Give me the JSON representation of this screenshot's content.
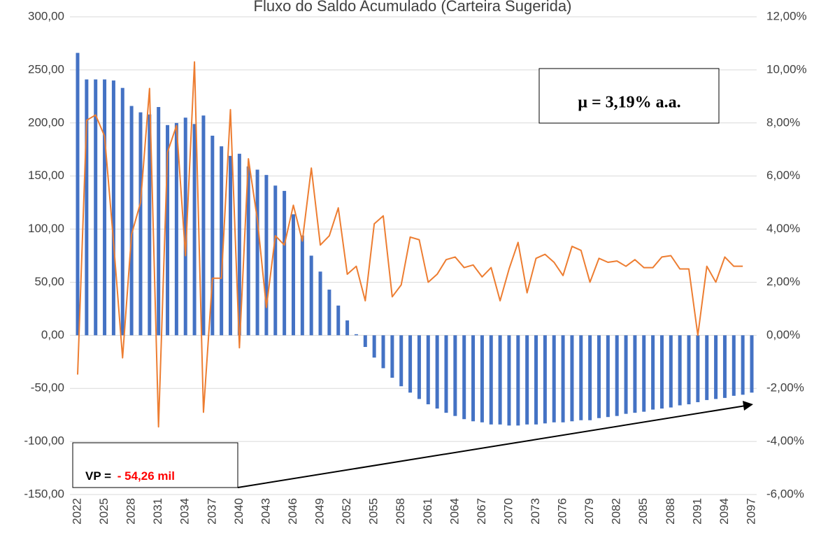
{
  "chart_data": {
    "type": "bar-line",
    "title": "Fluxo do Saldo Acumulado (Carteira Sugerida)",
    "categories": [
      "2022",
      null,
      null,
      "2025",
      null,
      null,
      "2028",
      null,
      null,
      "2031",
      null,
      null,
      "2034",
      null,
      null,
      "2037",
      null,
      null,
      "2040",
      null,
      null,
      "2043",
      null,
      null,
      "2046",
      null,
      null,
      "2049",
      null,
      null,
      "2052",
      null,
      null,
      "2055",
      null,
      null,
      "2058",
      null,
      null,
      "2061",
      null,
      null,
      "2064",
      null,
      null,
      "2067",
      null,
      null,
      "2070",
      null,
      null,
      "2073",
      null,
      null,
      "2076",
      null,
      null,
      "2079",
      null,
      null,
      "2082",
      null,
      null,
      "2085",
      null,
      null,
      "2088",
      null,
      null,
      "2091",
      null,
      null,
      "2094",
      null,
      null,
      "2097"
    ],
    "series": [
      {
        "type": "bar",
        "color": "#4472c4",
        "values": [
          266,
          241,
          241,
          241,
          240,
          233,
          216,
          210,
          208,
          215,
          198,
          200,
          205,
          199,
          207,
          188,
          178,
          169,
          171,
          159,
          156,
          151,
          141,
          136,
          114,
          94,
          75,
          60,
          43,
          28,
          14,
          1,
          -11,
          -21,
          -31,
          -40,
          -48,
          -54,
          -60,
          -65,
          -69,
          -73,
          -76,
          -79,
          -81,
          -82,
          -84,
          -84,
          -85,
          -85,
          -84,
          -84,
          -83,
          -82,
          -82,
          -81,
          -80,
          -80,
          -78,
          -77,
          -76,
          -74,
          -73,
          -72,
          -70,
          -69,
          -68,
          -66,
          -65,
          -63,
          -61,
          -60,
          -59,
          -57,
          -56,
          -54
        ]
      },
      {
        "type": "line",
        "axis": "y2",
        "color": "#ed7d31",
        "values": [
          -1.48,
          8.1,
          8.3,
          7.5,
          3.5,
          -0.85,
          3.8,
          5.0,
          9.3,
          -3.45,
          6.9,
          7.9,
          3.0,
          10.3,
          -2.9,
          2.15,
          2.15,
          8.5,
          -0.47,
          6.65,
          4.35,
          1.05,
          3.75,
          3.4,
          4.9,
          3.55,
          6.3,
          3.4,
          3.75,
          4.8,
          2.3,
          2.6,
          1.3,
          4.2,
          4.5,
          1.45,
          1.9,
          3.7,
          3.6,
          2.0,
          2.3,
          2.85,
          2.95,
          2.55,
          2.65,
          2.2,
          2.55,
          1.3,
          2.5,
          3.5,
          1.6,
          2.9,
          3.05,
          2.75,
          2.25,
          3.35,
          3.2,
          2.0,
          2.9,
          2.75,
          2.8,
          2.6,
          2.85,
          2.55,
          2.55,
          2.95,
          3.0,
          2.5,
          2.5,
          0,
          2.6,
          2.0,
          2.95,
          2.6,
          2.6,
          null
        ]
      }
    ],
    "ylim": [
      -150,
      300
    ],
    "yticks": [
      {
        "value": -150,
        "label": "-150,00"
      },
      {
        "value": -100,
        "label": "-100,00"
      },
      {
        "value": -50,
        "label": "-50,00"
      },
      {
        "value": 0,
        "label": "0,00"
      },
      {
        "value": 50,
        "label": "50,00"
      },
      {
        "value": 100,
        "label": "100,00"
      },
      {
        "value": 150,
        "label": "150,00"
      },
      {
        "value": 200,
        "label": "200,00"
      },
      {
        "value": 250,
        "label": "250,00"
      },
      {
        "value": 300,
        "label": "300,00"
      }
    ],
    "y2lim": [
      -6,
      12
    ],
    "y2ticks": [
      {
        "value": -6,
        "label": "-6,00%"
      },
      {
        "value": -4,
        "label": "-4,00%"
      },
      {
        "value": -2,
        "label": "-2,00%"
      },
      {
        "value": 0,
        "label": "0,00%"
      },
      {
        "value": 2,
        "label": "2,00%"
      },
      {
        "value": 4,
        "label": "4,00%"
      },
      {
        "value": 6,
        "label": "6,00%"
      },
      {
        "value": 8,
        "label": "8,00%"
      },
      {
        "value": 10,
        "label": "10,00%"
      },
      {
        "value": 12,
        "label": "12,00%"
      }
    ],
    "grid": true,
    "annotations": [
      {
        "text": "μ = 3,19% a.a."
      },
      {
        "label": "VP = ",
        "value_text": "- 54,26 mil",
        "color": "#ff0000"
      }
    ]
  }
}
